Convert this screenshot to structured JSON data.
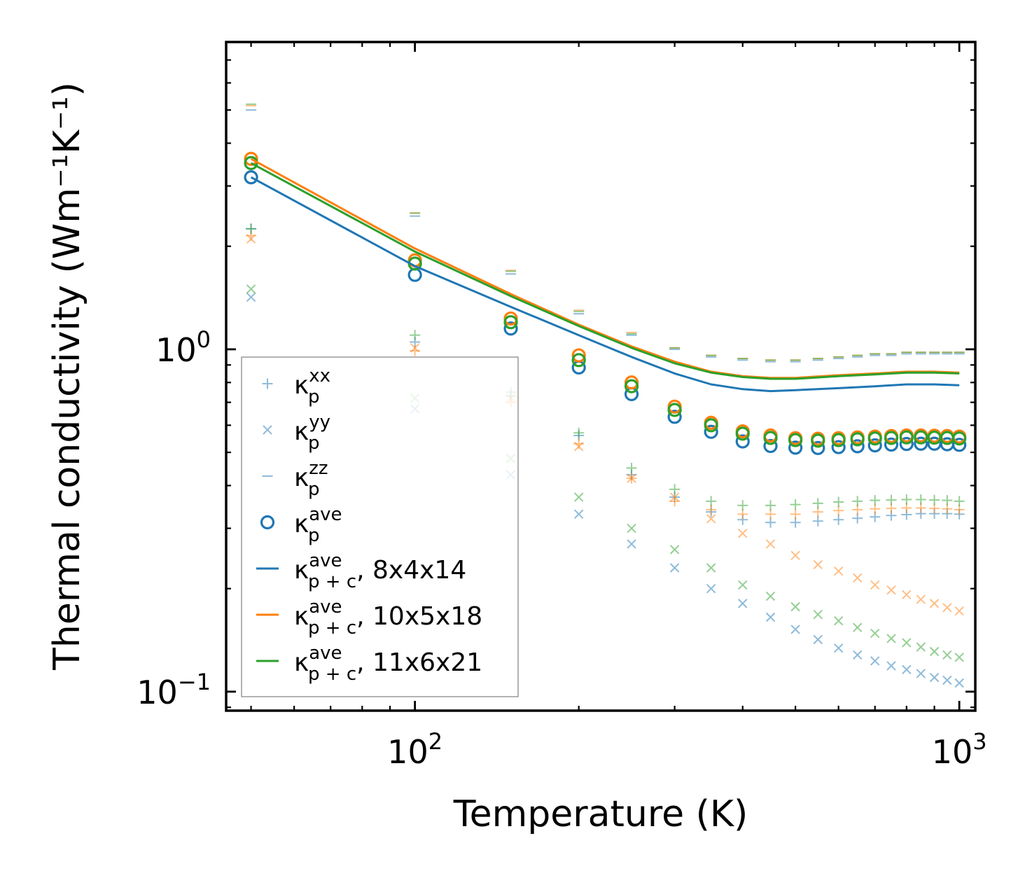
{
  "chart_data": {
    "type": "scatter",
    "title": "",
    "xlabel": "Temperature (K)",
    "ylabel": "Thermal conductivity (Wm⁻¹K⁻¹)",
    "xscale": "log",
    "yscale": "log",
    "xlim": [
      45,
      1070
    ],
    "ylim": [
      0.088,
      7.9
    ],
    "x_tick_labels": [
      {
        "value": 100,
        "base": "10",
        "exp": "2"
      },
      {
        "value": 1000,
        "base": "10",
        "exp": "3"
      }
    ],
    "y_tick_labels": [
      {
        "value": 0.1,
        "base": "10",
        "exp": "−1"
      },
      {
        "value": 1,
        "base": "10",
        "exp": "0"
      }
    ],
    "legend_position": "lower-left",
    "legend": [
      {
        "marker": "plus",
        "color": "#1f77b4",
        "alpha": 0.5,
        "label": "κ",
        "sub": "p",
        "sup": "xx",
        "suffix": ""
      },
      {
        "marker": "x",
        "color": "#1f77b4",
        "alpha": 0.5,
        "label": "κ",
        "sub": "p",
        "sup": "yy",
        "suffix": ""
      },
      {
        "marker": "dash",
        "color": "#1f77b4",
        "alpha": 0.5,
        "label": "κ",
        "sub": "p",
        "sup": "zz",
        "suffix": ""
      },
      {
        "marker": "circle",
        "color": "#1f77b4",
        "alpha": 1,
        "label": "κ",
        "sub": "p",
        "sup": "ave",
        "suffix": ""
      },
      {
        "marker": "line",
        "color": "#1f77b4",
        "alpha": 1,
        "label": "κ",
        "sub": "p + c",
        "sup": "ave",
        "suffix": ", 8x4x14"
      },
      {
        "marker": "line",
        "color": "#ff7f0e",
        "alpha": 1,
        "label": "κ",
        "sub": "p + c",
        "sup": "ave",
        "suffix": ", 10x5x18"
      },
      {
        "marker": "line",
        "color": "#2ca02c",
        "alpha": 1,
        "label": "κ",
        "sub": "p + c",
        "sup": "ave",
        "suffix": ", 11x6x21"
      }
    ],
    "temperatures": [
      50,
      100,
      150,
      200,
      250,
      300,
      350,
      400,
      450,
      500,
      550,
      600,
      650,
      700,
      750,
      800,
      850,
      900,
      950,
      1000
    ],
    "line_temperatures": [
      50,
      100,
      150,
      200,
      250,
      300,
      350,
      400,
      450,
      500,
      600,
      700,
      800,
      900,
      1000
    ],
    "meshes": [
      {
        "name": "8x4x14",
        "color": "#1f77b4",
        "kxx": [
          2.25,
          1.05,
          0.73,
          0.56,
          0.43,
          0.37,
          0.335,
          0.318,
          0.312,
          0.312,
          0.315,
          0.318,
          0.321,
          0.324,
          0.327,
          0.329,
          0.331,
          0.331,
          0.331,
          0.33
        ],
        "kyy": [
          1.42,
          0.67,
          0.43,
          0.33,
          0.27,
          0.23,
          0.2,
          0.181,
          0.165,
          0.152,
          0.142,
          0.134,
          0.128,
          0.123,
          0.119,
          0.116,
          0.113,
          0.11,
          0.108,
          0.106
        ],
        "kzz": [
          5.0,
          2.45,
          1.66,
          1.27,
          1.1,
          1.0,
          0.95,
          0.93,
          0.92,
          0.92,
          0.93,
          0.94,
          0.95,
          0.96,
          0.96,
          0.97,
          0.97,
          0.97,
          0.97,
          0.97
        ],
        "kave": [
          3.18,
          1.65,
          1.15,
          0.885,
          0.74,
          0.635,
          0.574,
          0.538,
          0.522,
          0.516,
          0.515,
          0.518,
          0.521,
          0.524,
          0.527,
          0.529,
          0.53,
          0.53,
          0.528,
          0.526
        ],
        "line": [
          3.18,
          1.75,
          1.33,
          1.1,
          0.95,
          0.85,
          0.79,
          0.765,
          0.755,
          0.76,
          0.77,
          0.78,
          0.79,
          0.79,
          0.785
        ]
      },
      {
        "name": "10x5x18",
        "color": "#ff7f0e",
        "kxx": [
          2.15,
          0.99,
          0.7,
          0.53,
          0.42,
          0.36,
          0.34,
          0.33,
          0.33,
          0.33,
          0.335,
          0.338,
          0.34,
          0.342,
          0.343,
          0.344,
          0.344,
          0.343,
          0.342,
          0.34
        ],
        "kyy": [
          2.1,
          1.01,
          0.72,
          0.52,
          0.42,
          0.37,
          0.32,
          0.29,
          0.27,
          0.25,
          0.235,
          0.225,
          0.215,
          0.205,
          0.198,
          0.192,
          0.186,
          0.181,
          0.176,
          0.172
        ],
        "kzz": [
          5.15,
          2.5,
          1.7,
          1.3,
          1.12,
          1.01,
          0.96,
          0.94,
          0.93,
          0.93,
          0.94,
          0.95,
          0.96,
          0.97,
          0.97,
          0.98,
          0.98,
          0.98,
          0.98,
          0.98
        ],
        "kave": [
          3.6,
          1.82,
          1.23,
          0.96,
          0.8,
          0.68,
          0.61,
          0.576,
          0.56,
          0.55,
          0.548,
          0.55,
          0.553,
          0.556,
          0.558,
          0.56,
          0.56,
          0.559,
          0.558,
          0.556
        ],
        "line": [
          3.6,
          1.97,
          1.45,
          1.18,
          1.02,
          0.92,
          0.86,
          0.835,
          0.825,
          0.825,
          0.84,
          0.85,
          0.86,
          0.86,
          0.855
        ]
      },
      {
        "name": "11x6x21",
        "color": "#2ca02c",
        "kxx": [
          2.25,
          1.1,
          0.75,
          0.57,
          0.45,
          0.39,
          0.36,
          0.35,
          0.35,
          0.352,
          0.355,
          0.358,
          0.36,
          0.362,
          0.363,
          0.364,
          0.364,
          0.363,
          0.362,
          0.36
        ],
        "kyy": [
          1.5,
          0.72,
          0.48,
          0.37,
          0.3,
          0.26,
          0.23,
          0.205,
          0.19,
          0.177,
          0.168,
          0.161,
          0.154,
          0.148,
          0.143,
          0.139,
          0.135,
          0.131,
          0.128,
          0.126
        ],
        "kzz": [
          5.2,
          2.5,
          1.69,
          1.29,
          1.11,
          1.01,
          0.96,
          0.94,
          0.93,
          0.93,
          0.94,
          0.95,
          0.96,
          0.97,
          0.97,
          0.98,
          0.98,
          0.98,
          0.98,
          0.98
        ],
        "kave": [
          3.5,
          1.78,
          1.2,
          0.93,
          0.78,
          0.665,
          0.6,
          0.567,
          0.551,
          0.543,
          0.541,
          0.543,
          0.546,
          0.549,
          0.551,
          0.553,
          0.553,
          0.552,
          0.551,
          0.549
        ],
        "line": [
          3.5,
          1.93,
          1.43,
          1.17,
          1.01,
          0.91,
          0.855,
          0.83,
          0.82,
          0.82,
          0.835,
          0.845,
          0.855,
          0.855,
          0.85
        ]
      }
    ]
  }
}
